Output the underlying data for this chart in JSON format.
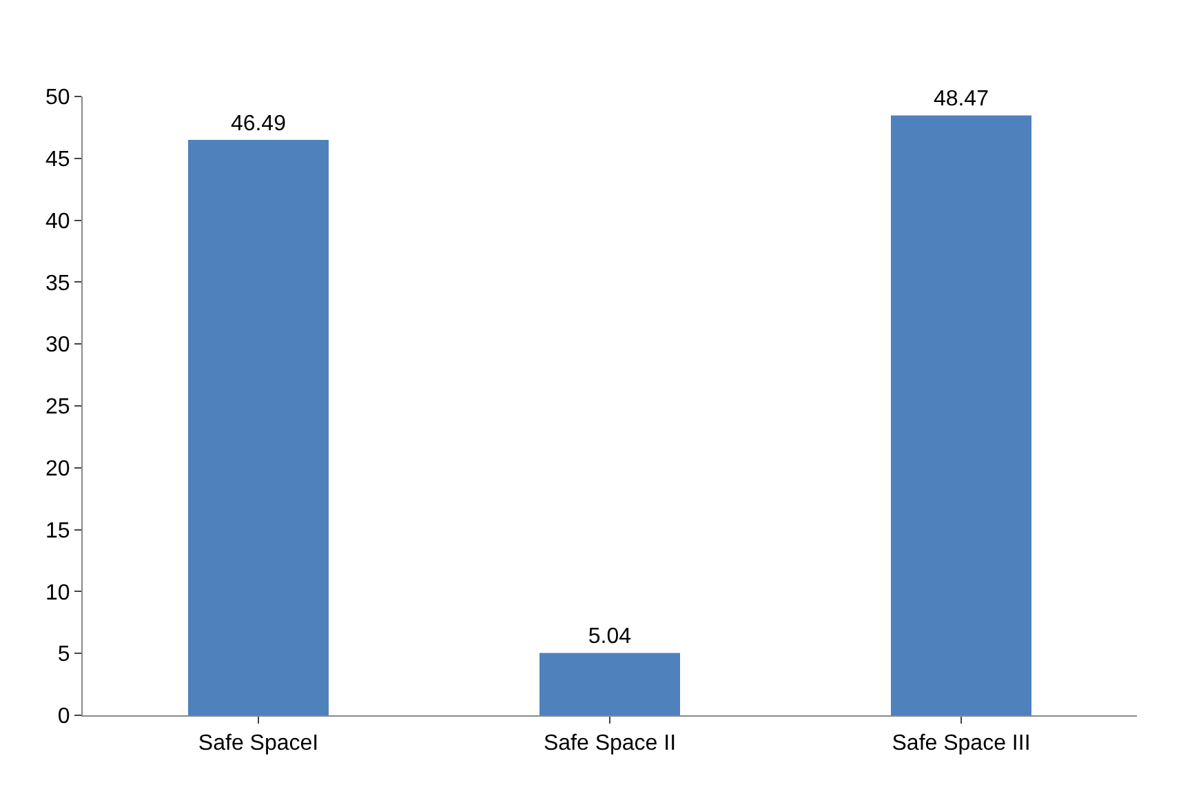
{
  "chart_data": {
    "type": "bar",
    "categories": [
      "Safe SpaceI",
      "Safe Space II",
      "Safe Space III"
    ],
    "values": [
      46.49,
      5.04,
      48.47
    ],
    "color": "#4f81bd",
    "ylim": [
      0,
      50
    ],
    "yticks": [
      0,
      5,
      10,
      15,
      20,
      25,
      30,
      35,
      40,
      45,
      50
    ],
    "data_labels": true
  }
}
